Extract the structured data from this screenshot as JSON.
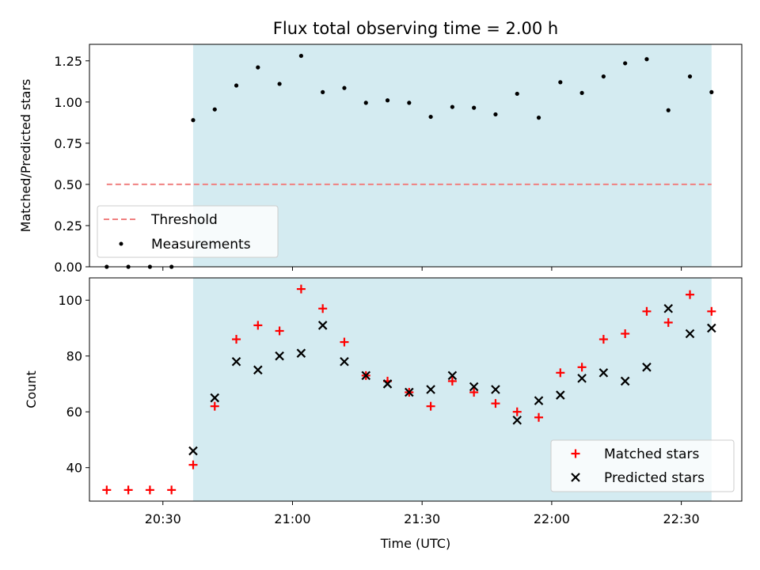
{
  "chart_data": [
    {
      "type": "scatter",
      "title": "Flux total observing time = 2.00 h",
      "xlabel": "",
      "ylabel": "Matched/Predicted stars",
      "xlim": [
        "20:13",
        "22:44"
      ],
      "ylim": [
        0,
        1.35
      ],
      "yticks": [
        0.0,
        0.25,
        0.5,
        0.75,
        1.0,
        1.25
      ],
      "ytick_labels": [
        "0.00",
        "0.25",
        "0.50",
        "0.75",
        "1.00",
        "1.25"
      ],
      "shaded_region": [
        "20:37",
        "22:37"
      ],
      "shade_color": "#d4ebf1",
      "legend_position": "lower-left",
      "threshold": {
        "name": "Threshold",
        "value": 0.5,
        "x_start": "20:17",
        "x_end": "22:37",
        "color": "#f08080"
      },
      "series": [
        {
          "name": "Measurements",
          "color": "#000000",
          "x": [
            "20:17",
            "20:22",
            "20:27",
            "20:32",
            "20:37",
            "20:42",
            "20:47",
            "20:52",
            "20:57",
            "21:02",
            "21:07",
            "21:12",
            "21:17",
            "21:22",
            "21:27",
            "21:32",
            "21:37",
            "21:42",
            "21:47",
            "21:52",
            "21:57",
            "22:02",
            "22:07",
            "22:12",
            "22:17",
            "22:22",
            "22:27",
            "22:32",
            "22:37"
          ],
          "y": [
            0,
            0,
            0,
            0,
            0.89,
            0.955,
            1.1,
            1.21,
            1.11,
            1.28,
            1.06,
            1.085,
            0.995,
            1.01,
            0.995,
            0.91,
            0.97,
            0.965,
            0.925,
            1.05,
            0.905,
            1.12,
            1.055,
            1.155,
            1.235,
            1.26,
            0.95,
            1.155,
            1.06
          ]
        }
      ]
    },
    {
      "type": "scatter",
      "title": "",
      "xlabel": "Time (UTC)",
      "ylabel": "Count",
      "xlim": [
        "20:13",
        "22:44"
      ],
      "ylim": [
        28,
        108
      ],
      "yticks": [
        40,
        60,
        80,
        100
      ],
      "ytick_labels": [
        "40",
        "60",
        "80",
        "100"
      ],
      "xticks": [
        "20:30",
        "21:00",
        "21:30",
        "22:00",
        "22:30"
      ],
      "shaded_region": [
        "20:37",
        "22:37"
      ],
      "shade_color": "#d4ebf1",
      "legend_position": "lower-right",
      "series": [
        {
          "name": "Matched stars",
          "marker": "+",
          "color": "#ff0000",
          "x": [
            "20:17",
            "20:22",
            "20:27",
            "20:32",
            "20:37",
            "20:42",
            "20:47",
            "20:52",
            "20:57",
            "21:02",
            "21:07",
            "21:12",
            "21:17",
            "21:22",
            "21:27",
            "21:32",
            "21:37",
            "21:42",
            "21:47",
            "21:52",
            "21:57",
            "22:02",
            "22:07",
            "22:12",
            "22:17",
            "22:22",
            "22:27",
            "22:32",
            "22:37"
          ],
          "y": [
            32,
            32,
            32,
            32,
            41,
            62,
            86,
            91,
            89,
            104,
            97,
            85,
            73,
            71,
            67,
            62,
            71,
            67,
            63,
            60,
            58,
            74,
            76,
            86,
            88,
            96,
            92,
            102,
            96
          ]
        },
        {
          "name": "Predicted stars",
          "marker": "x",
          "color": "#000000",
          "x": [
            "20:37",
            "20:42",
            "20:47",
            "20:52",
            "20:57",
            "21:02",
            "21:07",
            "21:12",
            "21:17",
            "21:22",
            "21:27",
            "21:32",
            "21:37",
            "21:42",
            "21:47",
            "21:52",
            "21:57",
            "22:02",
            "22:07",
            "22:12",
            "22:17",
            "22:22",
            "22:27",
            "22:32",
            "22:37"
          ],
          "y": [
            46,
            65,
            78,
            75,
            80,
            81,
            91,
            78,
            73,
            70,
            67,
            68,
            73,
            69,
            68,
            57,
            64,
            66,
            72,
            74,
            71,
            76,
            97,
            88,
            90
          ]
        }
      ]
    }
  ]
}
